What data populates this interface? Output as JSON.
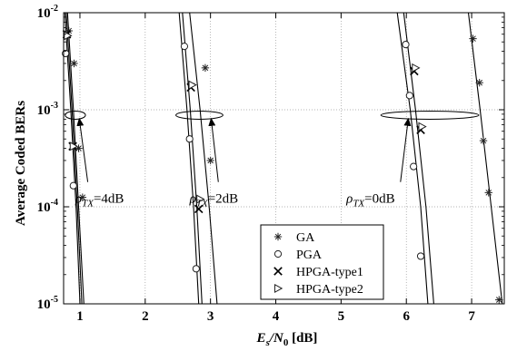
{
  "chart_data": {
    "type": "line",
    "title": "",
    "xlabel": "E_s/N_0 [dB]",
    "xlabel_parts": {
      "main": "E",
      "sub1": "s",
      "slash": "/N",
      "sub2": "0",
      "unit": " [dB]"
    },
    "ylabel": "Average Coded BERs",
    "y_scale": "log",
    "xlim": [
      0.75,
      7.5
    ],
    "ylim": [
      1e-05,
      0.01
    ],
    "grid": true,
    "x_ticks": [
      1,
      2,
      3,
      4,
      5,
      6,
      7
    ],
    "x_tick_labels": [
      "1",
      "2",
      "3",
      "4",
      "5",
      "6",
      "7"
    ],
    "y_ticks": [
      1e-05,
      0.0001,
      0.001,
      0.01
    ],
    "y_tick_labels": [
      {
        "base": "10",
        "exp": "-5"
      },
      {
        "base": "10",
        "exp": "-4"
      },
      {
        "base": "10",
        "exp": "-3"
      },
      {
        "base": "10",
        "exp": "-2"
      }
    ],
    "legend": {
      "position": "bottom-center",
      "entries": [
        {
          "label": "GA",
          "marker": "asterisk"
        },
        {
          "label": "PGA",
          "marker": "circle"
        },
        {
          "label": "HPGA-type1",
          "marker": "x"
        },
        {
          "label": "HPGA-type2",
          "marker": "triangle-right"
        }
      ]
    },
    "groups": [
      {
        "label": "4dB",
        "series": [
          {
            "name": "GA",
            "marker": "asterisk",
            "x": [
              0.83,
              0.91,
              0.98,
              1.04
            ],
            "y": [
              0.0065,
              0.003,
              0.0004,
              0.000125
            ]
          },
          {
            "name": "PGA",
            "marker": "circle",
            "x": [
              0.78,
              0.9
            ],
            "y": [
              0.0038,
              0.000165
            ]
          },
          {
            "name": "HPGA-type1",
            "marker": "x",
            "x": [
              0.8,
              0.89
            ],
            "y": [
              0.006,
              0.00042
            ]
          },
          {
            "name": "HPGA-type2",
            "marker": "triangle-right",
            "x": [
              0.81,
              0.9
            ],
            "y": [
              0.0058,
              0.00042
            ]
          }
        ],
        "curves": [
          {
            "x": [
              0.77,
              0.86,
              0.94,
              1.0
            ],
            "y": [
              0.01,
              0.001,
              0.0001,
              1e-05
            ]
          },
          {
            "x": [
              0.79,
              0.88,
              0.96,
              1.03
            ],
            "y": [
              0.01,
              0.001,
              0.0001,
              1e-05
            ]
          },
          {
            "x": [
              0.81,
              0.9,
              0.98,
              1.06
            ],
            "y": [
              0.01,
              0.001,
              0.0001,
              1e-05
            ]
          }
        ]
      },
      {
        "label": "2dB",
        "series": [
          {
            "name": "GA",
            "marker": "asterisk",
            "x": [
              2.92,
              3.0
            ],
            "y": [
              0.0027,
              0.0003
            ]
          },
          {
            "name": "PGA",
            "marker": "circle",
            "x": [
              2.6,
              2.68,
              2.78
            ],
            "y": [
              0.0045,
              0.0005,
              2.3e-05
            ]
          },
          {
            "name": "HPGA-type1",
            "marker": "x",
            "x": [
              2.7,
              2.82
            ],
            "y": [
              0.0017,
              9.5e-05
            ]
          },
          {
            "name": "HPGA-type2",
            "marker": "triangle-right",
            "x": [
              2.72,
              2.84
            ],
            "y": [
              0.0018,
              0.00012
            ]
          }
        ],
        "curves": [
          {
            "x": [
              2.52,
              2.64,
              2.74,
              2.82
            ],
            "y": [
              0.01,
              0.001,
              0.0001,
              1e-05
            ]
          },
          {
            "x": [
              2.57,
              2.69,
              2.79,
              2.87
            ],
            "y": [
              0.01,
              0.001,
              0.0001,
              1e-05
            ]
          },
          {
            "x": [
              2.68,
              2.84,
              2.98,
              3.1
            ],
            "y": [
              0.01,
              0.001,
              0.0001,
              1e-05
            ]
          }
        ]
      },
      {
        "label": "0dB",
        "series": [
          {
            "name": "GA",
            "marker": "asterisk",
            "x": [
              7.02,
              7.12,
              7.18,
              7.26,
              7.42
            ],
            "y": [
              0.0054,
              0.0019,
              0.00048,
              0.00014,
              1.1e-05
            ]
          },
          {
            "name": "PGA",
            "marker": "circle",
            "x": [
              5.99,
              6.05,
              6.11,
              6.22
            ],
            "y": [
              0.0047,
              0.0014,
              0.00026,
              3.1e-05
            ]
          },
          {
            "name": "HPGA-type1",
            "marker": "x",
            "x": [
              6.12,
              6.22
            ],
            "y": [
              0.0025,
              0.00062
            ]
          },
          {
            "name": "HPGA-type2",
            "marker": "triangle-right",
            "x": [
              6.14,
              6.24
            ],
            "y": [
              0.0027,
              0.00067
            ]
          }
        ],
        "curves": [
          {
            "x": [
              5.86,
              6.06,
              6.22,
              6.33
            ],
            "y": [
              0.01,
              0.001,
              0.0001,
              1e-05
            ]
          },
          {
            "x": [
              5.96,
              6.14,
              6.3,
              6.42
            ],
            "y": [
              0.01,
              0.001,
              0.0001,
              1e-05
            ]
          },
          {
            "x": [
              6.95,
              7.13,
              7.3,
              7.47
            ],
            "y": [
              0.01,
              0.001,
              0.0001,
              1e-05
            ]
          }
        ]
      }
    ],
    "annotations": [
      {
        "symbol": "ρ",
        "sub": "TX",
        "text": "=4dB",
        "ellipse_center": [
          0.93,
          0.00088
        ],
        "ellipse_width": 0.31,
        "arrow_tail": [
          1.12,
          0.00018
        ],
        "arrow_head": [
          0.99,
          0.00081
        ],
        "label_at": [
          0.93,
          0.00011
        ]
      },
      {
        "symbol": "ρ",
        "sub": "TX",
        "text": "=2dB",
        "ellipse_center": [
          2.83,
          0.00088
        ],
        "ellipse_width": 0.72,
        "arrow_tail": [
          3.12,
          0.00018
        ],
        "arrow_head": [
          3.01,
          0.00081
        ],
        "label_at": [
          2.68,
          0.00011
        ]
      },
      {
        "symbol": "ρ",
        "sub": "TX",
        "text": "=0dB",
        "ellipse_center": [
          6.36,
          0.00088
        ],
        "ellipse_width": 1.5,
        "arrow_tail": [
          5.91,
          0.00018
        ],
        "arrow_head": [
          6.03,
          0.00081
        ],
        "label_at": [
          5.08,
          0.00011
        ]
      }
    ]
  }
}
